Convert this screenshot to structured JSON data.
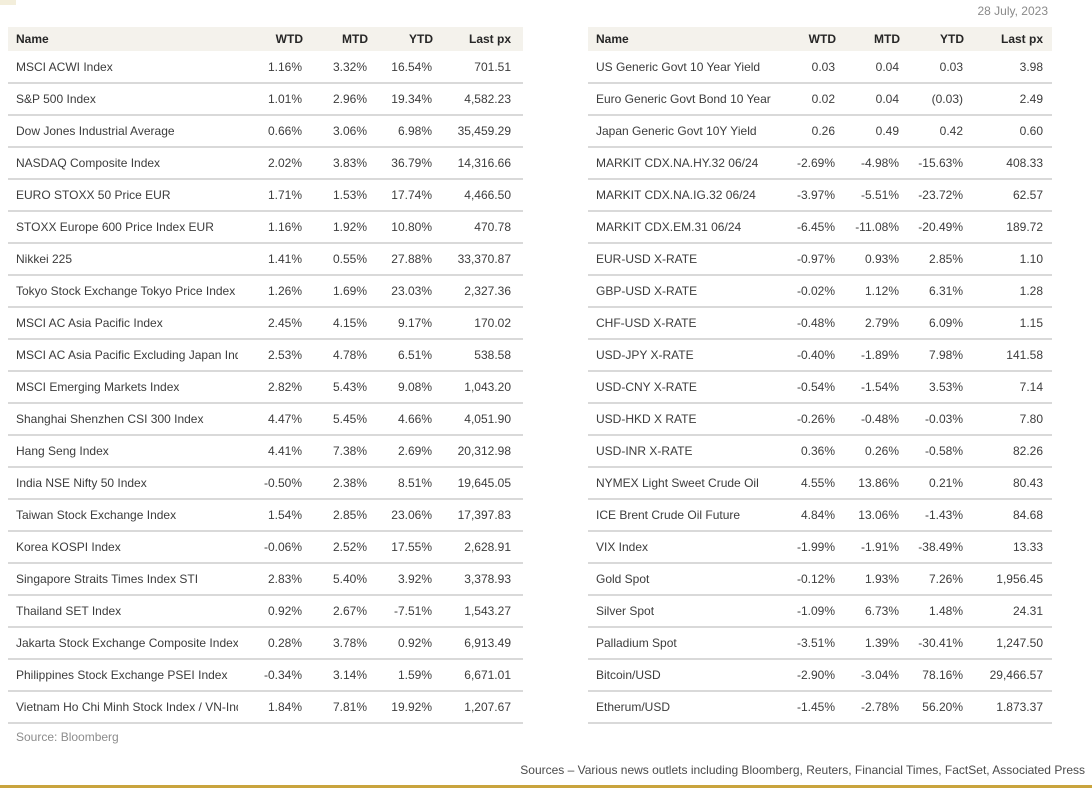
{
  "page": {
    "date": "28 July, 2023",
    "accent_gold": "#c9a43e",
    "header_bg": "#f4f2ec",
    "row_divider": "#d9d9d9"
  },
  "columns": [
    "Name",
    "WTD",
    "MTD",
    "YTD",
    "Last px"
  ],
  "left_table": {
    "source_note": "Source: Bloomberg",
    "rows": [
      [
        "MSCI ACWI Index",
        "1.16%",
        "3.32%",
        "16.54%",
        "701.51"
      ],
      [
        "S&P 500 Index",
        "1.01%",
        "2.96%",
        "19.34%",
        "4,582.23"
      ],
      [
        "Dow Jones Industrial Average",
        "0.66%",
        "3.06%",
        "6.98%",
        "35,459.29"
      ],
      [
        "NASDAQ Composite Index",
        "2.02%",
        "3.83%",
        "36.79%",
        "14,316.66"
      ],
      [
        "EURO STOXX 50 Price EUR",
        "1.71%",
        "1.53%",
        "17.74%",
        "4,466.50"
      ],
      [
        "STOXX Europe 600 Price Index EUR",
        "1.16%",
        "1.92%",
        "10.80%",
        "470.78"
      ],
      [
        "Nikkei 225",
        "1.41%",
        "0.55%",
        "27.88%",
        "33,370.87"
      ],
      [
        "Tokyo Stock Exchange Tokyo Price Index TOPIX",
        "1.26%",
        "1.69%",
        "23.03%",
        "2,327.36"
      ],
      [
        "MSCI AC Asia Pacific Index",
        "2.45%",
        "4.15%",
        "9.17%",
        "170.02"
      ],
      [
        "MSCI AC Asia Pacific Excluding Japan Index",
        "2.53%",
        "4.78%",
        "6.51%",
        "538.58"
      ],
      [
        "MSCI Emerging Markets Index",
        "2.82%",
        "5.43%",
        "9.08%",
        "1,043.20"
      ],
      [
        "Shanghai Shenzhen CSI 300 Index",
        "4.47%",
        "5.45%",
        "4.66%",
        "4,051.90"
      ],
      [
        "Hang Seng Index",
        "4.41%",
        "7.38%",
        "2.69%",
        "20,312.98"
      ],
      [
        "India NSE Nifty 50 Index",
        "-0.50%",
        "2.38%",
        "8.51%",
        "19,645.05"
      ],
      [
        "Taiwan Stock Exchange Index",
        "1.54%",
        "2.85%",
        "23.06%",
        "17,397.83"
      ],
      [
        "Korea KOSPI Index",
        "-0.06%",
        "2.52%",
        "17.55%",
        "2,628.91"
      ],
      [
        "Singapore Straits Times Index STI",
        "2.83%",
        "5.40%",
        "3.92%",
        "3,378.93"
      ],
      [
        "Thailand SET Index",
        "0.92%",
        "2.67%",
        "-7.51%",
        "1,543.27"
      ],
      [
        "Jakarta Stock Exchange Composite Index",
        "0.28%",
        "3.78%",
        "0.92%",
        "6,913.49"
      ],
      [
        "Philippines Stock Exchange PSEI Index",
        "-0.34%",
        "3.14%",
        "1.59%",
        "6,671.01"
      ],
      [
        "Vietnam Ho Chi Minh Stock Index / VN-Index",
        "1.84%",
        "7.81%",
        "19.92%",
        "1,207.67"
      ]
    ]
  },
  "right_table": {
    "rows": [
      [
        "US Generic Govt 10 Year Yield",
        "0.03",
        "0.04",
        "0.03",
        "3.98"
      ],
      [
        "Euro Generic Govt Bond 10 Year",
        "0.02",
        "0.04",
        "(0.03)",
        "2.49"
      ],
      [
        "Japan Generic Govt 10Y Yield",
        "0.26",
        "0.49",
        "0.42",
        "0.60"
      ],
      [
        "MARKIT CDX.NA.HY.32 06/24",
        "-2.69%",
        "-4.98%",
        "-15.63%",
        "408.33"
      ],
      [
        "MARKIT CDX.NA.IG.32 06/24",
        "-3.97%",
        "-5.51%",
        "-23.72%",
        "62.57"
      ],
      [
        "MARKIT CDX.EM.31 06/24",
        "-6.45%",
        "-11.08%",
        "-20.49%",
        "189.72"
      ],
      [
        "EUR-USD X-RATE",
        "-0.97%",
        "0.93%",
        "2.85%",
        "1.10"
      ],
      [
        "GBP-USD X-RATE",
        "-0.02%",
        "1.12%",
        "6.31%",
        "1.28"
      ],
      [
        "CHF-USD X-RATE",
        "-0.48%",
        "2.79%",
        "6.09%",
        "1.15"
      ],
      [
        "USD-JPY X-RATE",
        "-0.40%",
        "-1.89%",
        "7.98%",
        "141.58"
      ],
      [
        "USD-CNY X-RATE",
        "-0.54%",
        "-1.54%",
        "3.53%",
        "7.14"
      ],
      [
        "USD-HKD X RATE",
        "-0.26%",
        "-0.48%",
        "-0.03%",
        "7.80"
      ],
      [
        "USD-INR X-RATE",
        "0.36%",
        "0.26%",
        "-0.58%",
        "82.26"
      ],
      [
        "NYMEX Light Sweet Crude Oil",
        "4.55%",
        "13.86%",
        "0.21%",
        "80.43"
      ],
      [
        "ICE Brent Crude Oil Future",
        "4.84%",
        "13.06%",
        "-1.43%",
        "84.68"
      ],
      [
        "VIX Index",
        "-1.99%",
        "-1.91%",
        "-38.49%",
        "13.33"
      ],
      [
        "Gold Spot",
        "-0.12%",
        "1.93%",
        "7.26%",
        "1,956.45"
      ],
      [
        "Silver Spot",
        "-1.09%",
        "6.73%",
        "1.48%",
        "24.31"
      ],
      [
        "Palladium Spot",
        "-3.51%",
        "1.39%",
        "-30.41%",
        "1,247.50"
      ],
      [
        "Bitcoin/USD",
        "-2.90%",
        "-3.04%",
        "78.16%",
        "29,466.57"
      ],
      [
        "Etherum/USD",
        "-1.45%",
        "-2.78%",
        "56.20%",
        "1.873.37"
      ]
    ]
  },
  "footer": {
    "sources_note": "Sources – Various news outlets including Bloomberg, Reuters, Financial Times, FactSet, Associated Press"
  }
}
